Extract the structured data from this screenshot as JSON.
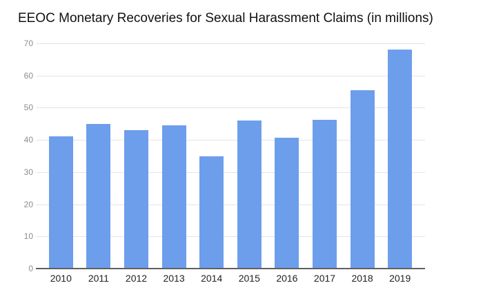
{
  "chart_data": {
    "type": "bar",
    "title": "EEOC Monetary Recoveries for Sexual Harassment Claims (in millions)",
    "categories": [
      "2010",
      "2011",
      "2012",
      "2013",
      "2014",
      "2015",
      "2016",
      "2017",
      "2018",
      "2019"
    ],
    "values": [
      41.2,
      45.1,
      43.1,
      44.6,
      35.0,
      46.0,
      40.8,
      46.3,
      55.6,
      68.2
    ],
    "xlabel": "",
    "ylabel": "",
    "ylim": [
      0,
      70
    ],
    "yticks": [
      0,
      10,
      20,
      30,
      40,
      50,
      60,
      70
    ],
    "grid": "horizontal",
    "legend": "none",
    "colors": {
      "bar": "#6d9eeb",
      "gridline": "#e4e4e4",
      "axis_line": "#5f5f5f",
      "title_text": "#111111",
      "x_label_text": "#212121",
      "y_label_text": "#8c8c8c",
      "background": "#ffffff"
    }
  }
}
